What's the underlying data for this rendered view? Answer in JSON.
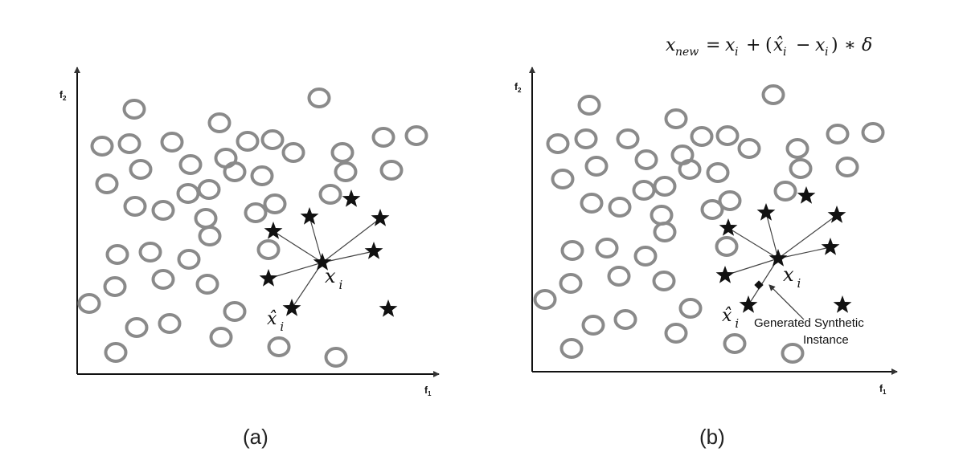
{
  "formula": {
    "text": "x_new = x_i + (x̂_i − x_i) ∗ δ",
    "lhs_base": "x",
    "lhs_sub": "new",
    "eq": "=",
    "t1_base": "x",
    "t1_sub": "i",
    "plus": "+",
    "lparen": "(",
    "t2_base": "x̂",
    "t2_sub": "i",
    "minus": "−",
    "t3_base": "x",
    "t3_sub": "i",
    "rparen": ")",
    "times": "∗",
    "delta": "δ"
  },
  "panels": [
    {
      "id": "a",
      "caption": "(a)",
      "x_axis": {
        "label": "f",
        "sub": "1"
      },
      "y_axis": {
        "label": "f",
        "sub": "2"
      },
      "center_label": {
        "base": "x",
        "sub": "i"
      },
      "neighbor_label": {
        "base": "x̂",
        "sub": "i"
      }
    },
    {
      "id": "b",
      "caption": "(b)",
      "x_axis": {
        "label": "f",
        "sub": "1"
      },
      "y_axis": {
        "label": "f",
        "sub": "2"
      },
      "center_label": {
        "base": "x",
        "sub": "i"
      },
      "neighbor_label": {
        "base": "x̂",
        "sub": "i"
      },
      "synthetic_label_line1": "Generated Synthetic",
      "synthetic_label_line2": "Instance"
    }
  ],
  "legend_semantics": {
    "majority_marker": "circle-icon",
    "minority_marker": "star-icon",
    "synthetic_marker": "diamond-icon"
  }
}
